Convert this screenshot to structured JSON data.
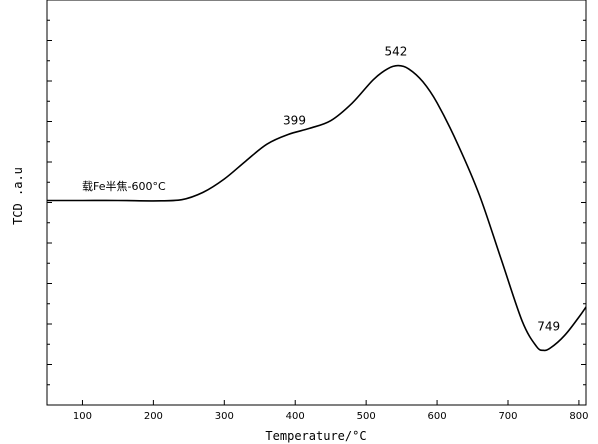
{
  "chart_data": {
    "type": "line",
    "title": "",
    "xlabel": "Temperature/°C",
    "ylabel": "TCD .a.u",
    "xlim": [
      50,
      810
    ],
    "xticks": [
      100,
      200,
      300,
      400,
      500,
      600,
      700,
      800
    ],
    "ylim": [
      0,
      100
    ],
    "grid": false,
    "series_label": "载Fe半焦-600°C",
    "series": [
      {
        "x": [
          50,
          100,
          150,
          200,
          240,
          270,
          300,
          330,
          360,
          390,
          420,
          450,
          480,
          510,
          530,
          545,
          560,
          580,
          600,
          630,
          660,
          690,
          720,
          740,
          750,
          760,
          780,
          800,
          810
        ],
        "y": [
          50.5,
          50.5,
          50.5,
          50.4,
          50.7,
          52.5,
          55.8,
          60.2,
          64.4,
          66.8,
          68.3,
          70.2,
          74.5,
          80.3,
          83.0,
          83.8,
          83.0,
          79.8,
          74.6,
          64.1,
          51.7,
          36.2,
          20.7,
          14.5,
          13.5,
          14.1,
          17.2,
          21.7,
          24.2
        ]
      }
    ],
    "annotations": [
      {
        "label": "399",
        "x": 399,
        "y": 66.8
      },
      {
        "label": "542",
        "x": 542,
        "y": 83.8
      },
      {
        "label": "749",
        "x": 749,
        "y": 13.5
      }
    ]
  }
}
